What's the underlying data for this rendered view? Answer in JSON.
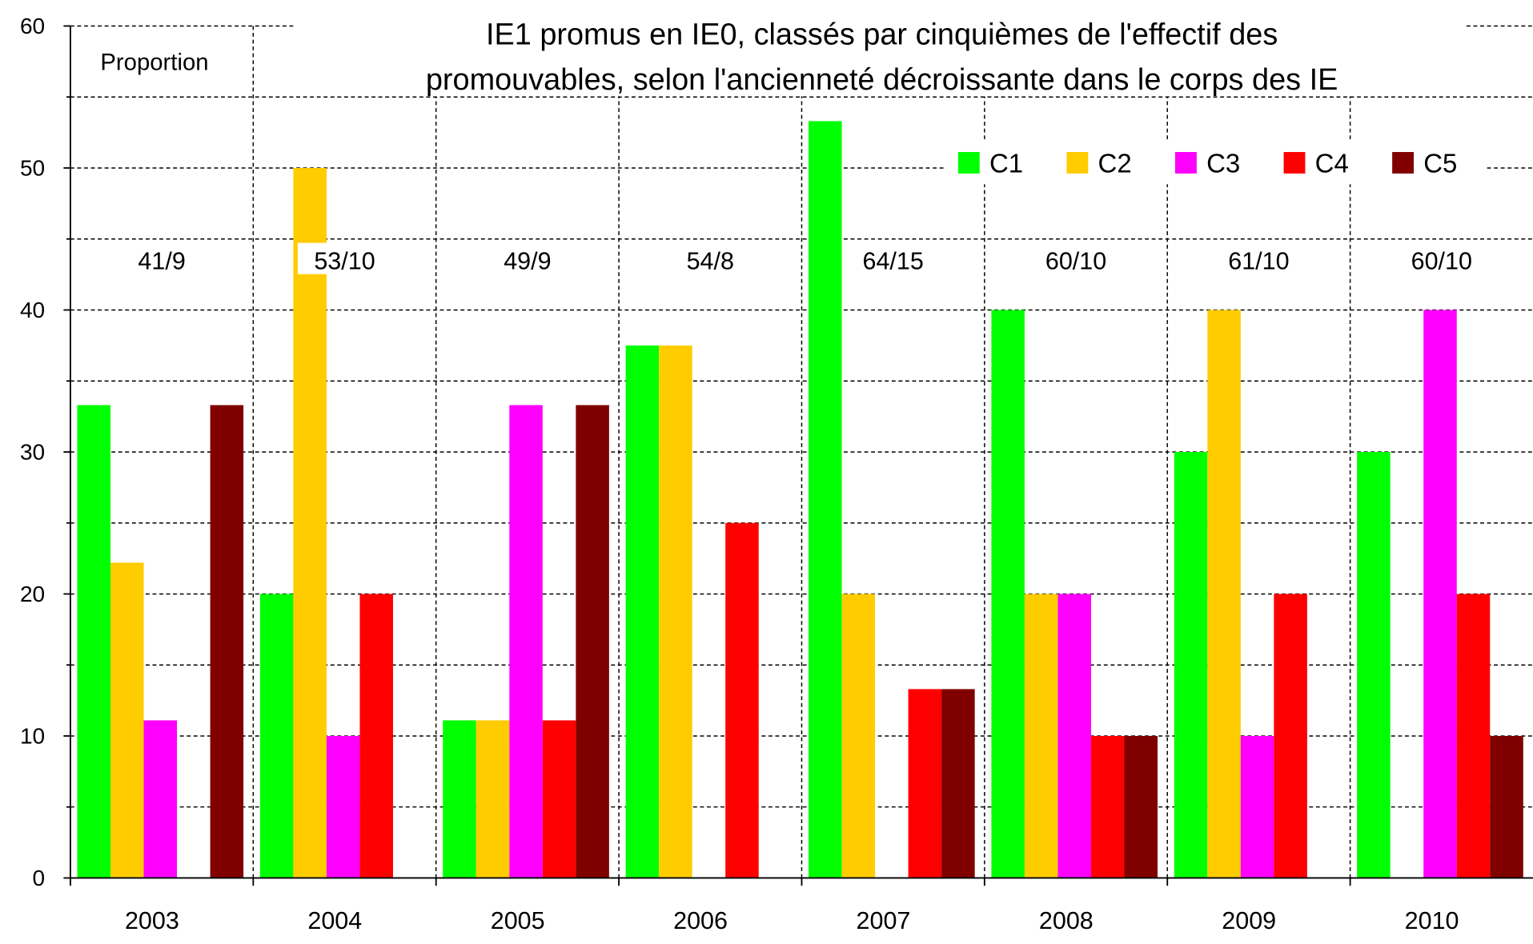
{
  "chart_data": {
    "type": "bar",
    "title": [
      "IE1 promus en IE0, classés par cinquièmes  de l'effectif des",
      "promouvables, selon l'ancienneté décroissante dans le corps des IE"
    ],
    "ylabel": "Proportion",
    "categories": [
      "2003",
      "2004",
      "2005",
      "2006",
      "2007",
      "2008",
      "2009",
      "2010"
    ],
    "annotations": [
      "41/9",
      "53/10",
      "49/9",
      "54/8",
      "64/15",
      "60/10",
      "61/10",
      "60/10"
    ],
    "series": [
      {
        "name": "C1",
        "color": "#00ff00",
        "values": [
          33.3,
          20,
          11.1,
          37.5,
          53.3,
          40,
          30,
          30
        ]
      },
      {
        "name": "C2",
        "color": "#ffcc00",
        "values": [
          22.2,
          50,
          11.1,
          37.5,
          20,
          20,
          40,
          0
        ]
      },
      {
        "name": "C3",
        "color": "#ff00ff",
        "values": [
          11.1,
          10,
          33.3,
          0,
          0,
          20,
          10,
          40
        ]
      },
      {
        "name": "C4",
        "color": "#ff0000",
        "values": [
          0,
          20,
          11.1,
          25,
          13.3,
          10,
          20,
          20
        ]
      },
      {
        "name": "C5",
        "color": "#800000",
        "values": [
          33.3,
          0,
          33.3,
          0,
          13.3,
          10,
          0,
          10
        ]
      }
    ],
    "ylim": [
      0,
      60
    ],
    "yticks": [
      0,
      10,
      20,
      30,
      40,
      50,
      60
    ],
    "minor_yticks": [
      5,
      15,
      25,
      35,
      45,
      55
    ],
    "grid": true,
    "legend": "top-right"
  }
}
